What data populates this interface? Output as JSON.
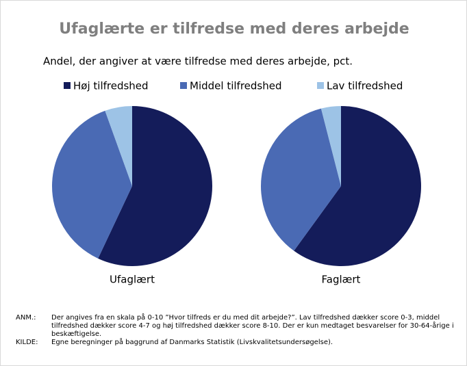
{
  "header": {
    "title": "Ufaglærte er tilfredse med deres arbejde",
    "subtitle": "Andel, der angiver at være tilfredse med deres arbejde, pct."
  },
  "chart_data": [
    {
      "type": "pie",
      "title": "Ufaglært",
      "categories": [
        "Høj tilfredshed",
        "Middel tilfredshed",
        "Lav tilfredshed"
      ],
      "colors": [
        "#141c5a",
        "#4a6ab4",
        "#9dc3e6"
      ],
      "values": [
        57,
        37.5,
        5.5
      ]
    },
    {
      "type": "pie",
      "title": "Faglært",
      "categories": [
        "Høj tilfredshed",
        "Middel tilfredshed",
        "Lav tilfredshed"
      ],
      "colors": [
        "#141c5a",
        "#4a6ab4",
        "#9dc3e6"
      ],
      "values": [
        60,
        36,
        4
      ]
    }
  ],
  "notes": [
    {
      "label": "ANM.:",
      "text": "Der angives fra en skala på 0-10 ”Hvor tilfreds er du med dit arbejde?”. Lav tilfredshed dækker score 0-3, middel tilfredshed dækker score 4-7 og høj tilfredshed dækker score 8-10. Der er kun medtaget besvarelser for 30-64-årige i beskæftigelse."
    },
    {
      "label": "KILDE:",
      "text": "Egne beregninger på baggrund af Danmarks Statistik (Livskvalitetsundersøgelse)."
    }
  ]
}
